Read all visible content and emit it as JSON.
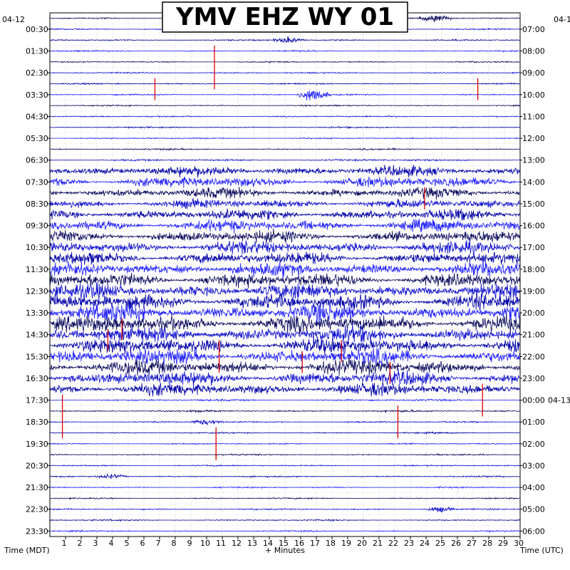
{
  "chart_data": {
    "type": "line",
    "title": "YMV EHZ WY 01",
    "xlabel": "+ Minutes",
    "left_axis_title": "Time (MDT)",
    "right_axis_title": "Time (UTC)",
    "left_date": "04-12",
    "right_date_top": "04-1",
    "right_date_mid": "04-13",
    "x_ticks": [
      "1",
      "2",
      "3",
      "4",
      "5",
      "6",
      "7",
      "8",
      "9",
      "10",
      "11",
      "12",
      "13",
      "14",
      "15",
      "16",
      "17",
      "18",
      "19",
      "20",
      "21",
      "22",
      "23",
      "24",
      "25",
      "26",
      "27",
      "28",
      "29",
      "30"
    ],
    "xlim": [
      0,
      30
    ],
    "rows_per_hour": 2,
    "row_minutes": 30,
    "left_ticks": [
      "00:30",
      "01:30",
      "02:30",
      "03:30",
      "04:30",
      "05:30",
      "06:30",
      "07:30",
      "08:30",
      "09:30",
      "10:30",
      "11:30",
      "12:30",
      "13:30",
      "14:30",
      "15:30",
      "16:30",
      "17:30",
      "18:30",
      "19:30",
      "20:30",
      "21:30",
      "22:30",
      "23:30"
    ],
    "right_ticks": [
      "07:00",
      "08:00",
      "09:00",
      "10:00",
      "11:00",
      "12:00",
      "13:00",
      "14:00",
      "15:00",
      "16:00",
      "17:00",
      "18:00",
      "19:00",
      "20:00",
      "21:00",
      "22:00",
      "23:00",
      "00:00",
      "01:00",
      "02:00",
      "03:00",
      "04:00",
      "05:00",
      "06:00"
    ],
    "trace_colors": [
      "#0a0a5c",
      "#1010d0",
      "#0000a8",
      "#2020ff"
    ],
    "highlight_color": "#e00000",
    "grid": true,
    "activity_profile": [
      0.05,
      0.05,
      0.05,
      0.05,
      0.05,
      0.05,
      0.05,
      0.05,
      0.05,
      0.05,
      0.05,
      0.05,
      0.06,
      0.08,
      0.55,
      0.6,
      0.55,
      0.5,
      0.6,
      0.65,
      0.65,
      0.7,
      0.7,
      0.75,
      0.8,
      0.85,
      0.9,
      0.95,
      0.95,
      0.9,
      0.9,
      0.85,
      0.85,
      0.8,
      0.7,
      0.08,
      0.08,
      0.06,
      0.05,
      0.05,
      0.05,
      0.05,
      0.05,
      0.05,
      0.05,
      0.05,
      0.05,
      0.05
    ],
    "red_spikes": [
      {
        "row": 3,
        "minute": 10.5,
        "rows_span": 4
      },
      {
        "row": 6,
        "minute": 6.7,
        "rows_span": 2
      },
      {
        "row": 6,
        "minute": 27.3,
        "rows_span": 2
      },
      {
        "row": 16,
        "minute": 23.9,
        "rows_span": 2
      },
      {
        "row": 28,
        "minute": 4.6,
        "rows_span": 2
      },
      {
        "row": 29,
        "minute": 3.7,
        "rows_span": 2
      },
      {
        "row": 30,
        "minute": 18.6,
        "rows_span": 2
      },
      {
        "row": 30,
        "minute": 10.8,
        "rows_span": 3
      },
      {
        "row": 31,
        "minute": 16.1,
        "rows_span": 2
      },
      {
        "row": 32,
        "minute": 21.7,
        "rows_span": 2
      },
      {
        "row": 35,
        "minute": 0.8,
        "rows_span": 4
      },
      {
        "row": 34,
        "minute": 27.6,
        "rows_span": 3
      },
      {
        "row": 36,
        "minute": 22.2,
        "rows_span": 3
      },
      {
        "row": 38,
        "minute": 10.6,
        "rows_span": 3
      }
    ],
    "events": [
      {
        "row": 0,
        "minute": 24.6,
        "amp": 8
      },
      {
        "row": 2,
        "minute": 15.2,
        "amp": 6
      },
      {
        "row": 7,
        "minute": 16.8,
        "amp": 14
      },
      {
        "row": 37,
        "minute": 10.0,
        "amp": 6
      },
      {
        "row": 42,
        "minute": 4.0,
        "amp": 5
      },
      {
        "row": 45,
        "minute": 24.8,
        "amp": 6
      }
    ]
  }
}
